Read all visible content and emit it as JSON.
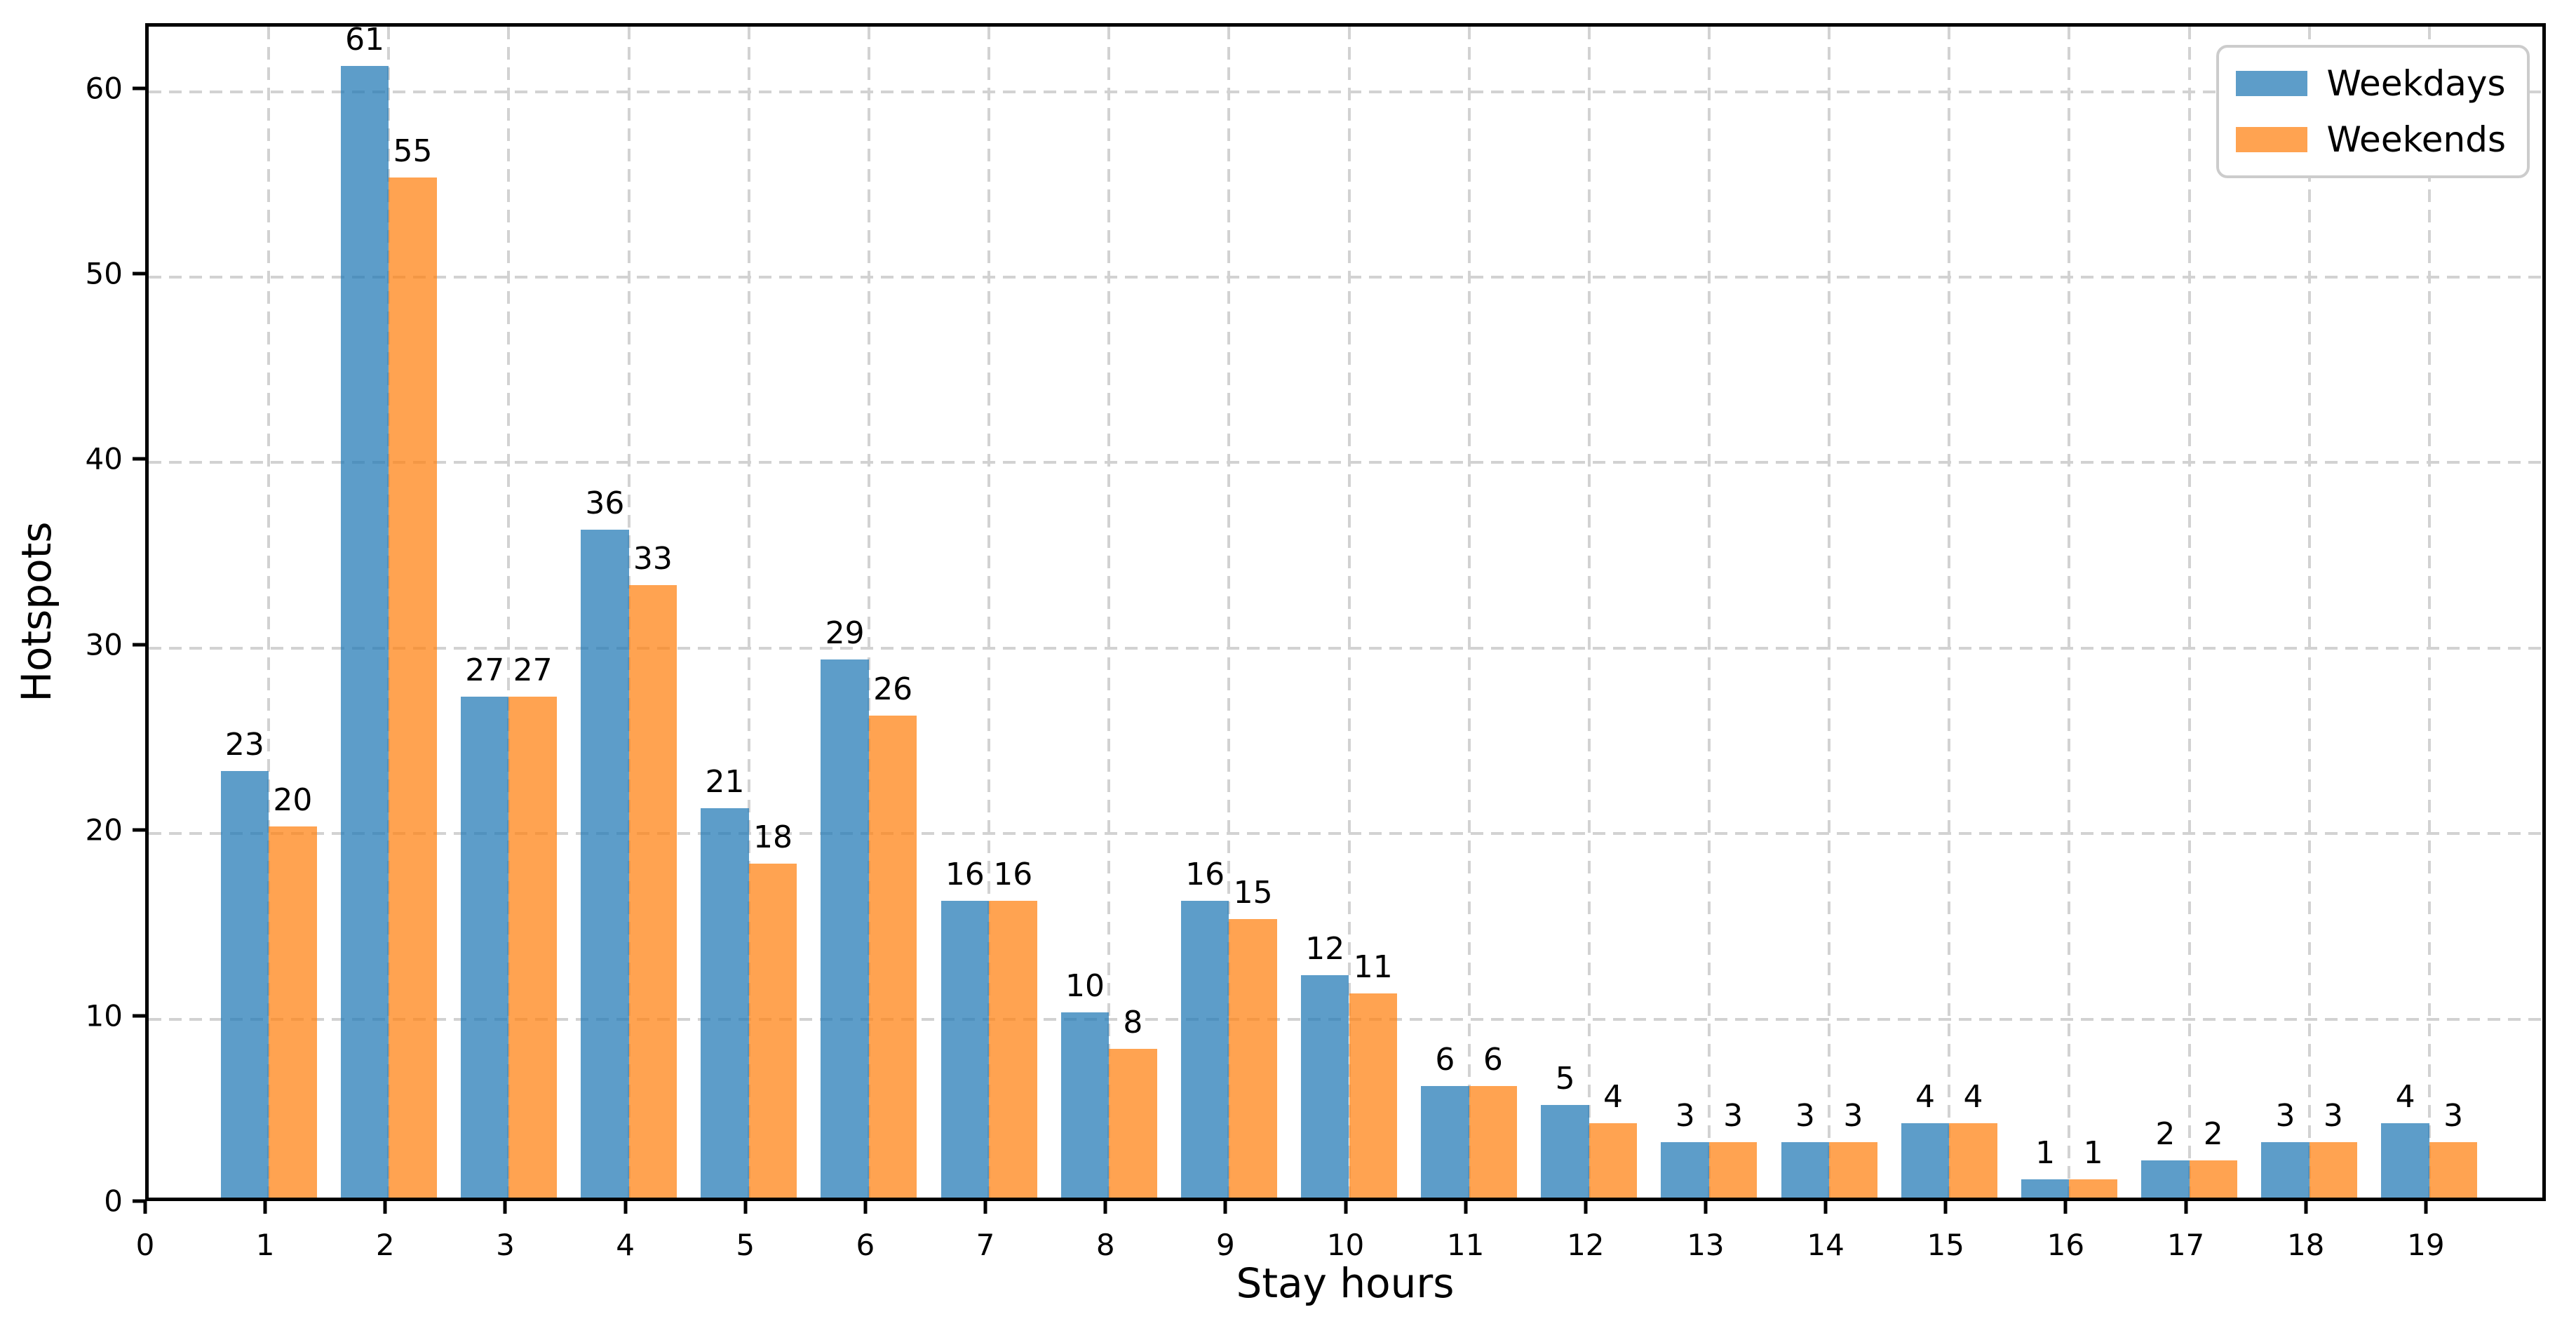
{
  "chart_data": {
    "type": "bar",
    "title": "",
    "xlabel": "Stay hours",
    "ylabel": "Hotspots",
    "x": [
      1,
      2,
      3,
      4,
      5,
      6,
      7,
      8,
      9,
      10,
      11,
      12,
      13,
      14,
      15,
      16,
      17,
      18,
      19
    ],
    "series": [
      {
        "name": "Weekdays",
        "color": "#1f77b4",
        "values": [
          23,
          61,
          27,
          36,
          21,
          29,
          16,
          10,
          16,
          12,
          6,
          5,
          3,
          3,
          4,
          1,
          2,
          3,
          4
        ]
      },
      {
        "name": "Weekends",
        "color": "#ff7f0e",
        "values": [
          20,
          55,
          27,
          33,
          18,
          26,
          16,
          8,
          15,
          11,
          6,
          4,
          3,
          3,
          4,
          1,
          2,
          3,
          3
        ]
      }
    ],
    "bar_alpha": 0.72,
    "bar_width_units": 0.4,
    "xticks": [
      0,
      1,
      2,
      3,
      4,
      5,
      6,
      7,
      8,
      9,
      10,
      11,
      12,
      13,
      14,
      15,
      16,
      17,
      18,
      19
    ],
    "yticks": [
      0,
      10,
      20,
      30,
      40,
      50,
      60
    ],
    "xlim": [
      0,
      20
    ],
    "ylim": [
      0,
      63.5
    ],
    "grid": "dashed",
    "grid_color": "#d2d2d2",
    "value_labels": true,
    "legend_position": "upper right",
    "legend_entries": [
      "Weekdays",
      "Weekends"
    ]
  }
}
